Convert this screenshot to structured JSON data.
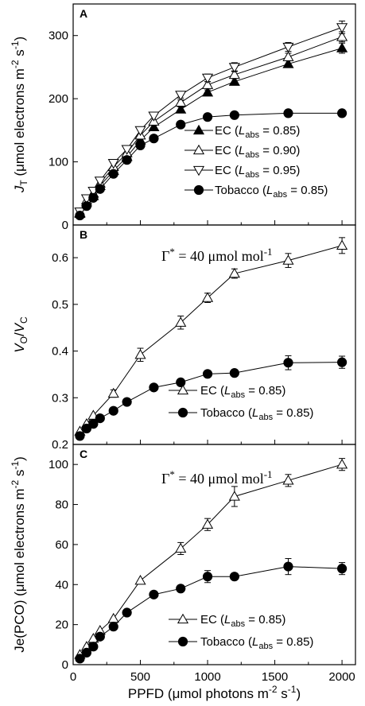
{
  "chart_data": [
    {
      "type": "line",
      "panel_label": "A",
      "ylabel": "J_T (μmol electrons m⁻² s⁻¹)",
      "ylabel_parts": {
        "base": "J",
        "sub": "T",
        "rest": " (μmol electrons m",
        "sup1": "-2",
        "mid": " s",
        "sup2": "-1",
        "end": ")"
      },
      "xlim": [
        0,
        2100
      ],
      "ylim": [
        0,
        350
      ],
      "yticks": [
        0,
        100,
        200,
        300
      ],
      "legend_position": "lower-right",
      "series": [
        {
          "name": "EC (Labs = 0.85)",
          "legend": {
            "pre": "EC (",
            "L": "L",
            "sub": "abs",
            "post": " = 0.85)"
          },
          "marker": "triangle-up-filled",
          "x": [
            50,
            100,
            150,
            200,
            300,
            400,
            500,
            600,
            800,
            1000,
            1200,
            1600,
            2000
          ],
          "y": [
            18,
            36,
            46,
            62,
            86,
            108,
            134,
            155,
            183,
            210,
            227,
            255,
            280
          ],
          "err": [
            0,
            0,
            0,
            0,
            0,
            0,
            0,
            0,
            4,
            4,
            5,
            5,
            8
          ]
        },
        {
          "name": "EC (Labs = 0.90)",
          "legend": {
            "pre": "EC (",
            "L": "L",
            "sub": "abs",
            "post": " = 0.90)"
          },
          "marker": "triangle-up-open",
          "x": [
            50,
            100,
            150,
            200,
            300,
            400,
            500,
            600,
            800,
            1000,
            1200,
            1600,
            2000
          ],
          "y": [
            19,
            39,
            50,
            66,
            92,
            114,
            142,
            164,
            194,
            222,
            238,
            266,
            298
          ],
          "err": [
            0,
            0,
            0,
            0,
            0,
            0,
            0,
            0,
            4,
            5,
            6,
            6,
            8
          ]
        },
        {
          "name": "EC (Labs = 0.95)",
          "legend": {
            "pre": "EC (",
            "L": "L",
            "sub": "abs",
            "post": " = 0.95)"
          },
          "marker": "triangle-down-open",
          "x": [
            50,
            100,
            150,
            200,
            300,
            400,
            500,
            600,
            800,
            1000,
            1200,
            1600,
            2000
          ],
          "y": [
            21,
            42,
            54,
            70,
            98,
            120,
            150,
            173,
            206,
            233,
            250,
            282,
            313
          ],
          "err": [
            0,
            0,
            0,
            0,
            0,
            0,
            0,
            0,
            5,
            6,
            7,
            7,
            10
          ]
        },
        {
          "name": "Tobacco (Labs = 0.85)",
          "legend": {
            "pre": "Tobacco (",
            "L": "L",
            "sub": "abs",
            "post": " = 0.85)"
          },
          "marker": "circle-filled",
          "x": [
            50,
            100,
            150,
            200,
            300,
            400,
            500,
            600,
            800,
            1000,
            1200,
            1600,
            2000
          ],
          "y": [
            15,
            30,
            43,
            57,
            81,
            103,
            126,
            137,
            159,
            171,
            174,
            177,
            177
          ],
          "err": [
            0,
            0,
            0,
            0,
            0,
            0,
            0,
            0,
            0,
            4,
            4,
            5,
            4
          ]
        }
      ]
    },
    {
      "type": "line",
      "panel_label": "B",
      "annotation": "Γ* = 40 μmol mol⁻¹",
      "annotation_parts": {
        "gamma": "Γ",
        "star": "*",
        "rest": " = 40 μmol mol",
        "sup": "-1"
      },
      "ylabel": "V_O/V_C",
      "ylabel_parts": {
        "v1": "V",
        "s1": "O",
        "slash": "/",
        "v2": "V",
        "s2": "C"
      },
      "xlim": [
        0,
        2100
      ],
      "ylim": [
        0.2,
        0.67
      ],
      "yticks": [
        0.2,
        0.3,
        0.4,
        0.5,
        0.6
      ],
      "ytick_labels": [
        "0.2",
        "0.3",
        "0.4",
        "0.5",
        "0.6"
      ],
      "legend_position": "lower-right",
      "series": [
        {
          "name": "EC (Labs = 0.85)",
          "legend": {
            "pre": "EC (",
            "L": "L",
            "sub": "abs",
            "post": " = 0.85)"
          },
          "marker": "triangle-up-open",
          "x": [
            50,
            100,
            150,
            300,
            500,
            800,
            1000,
            1200,
            1600,
            2000
          ],
          "y": [
            0.228,
            0.244,
            0.262,
            0.309,
            0.392,
            0.461,
            0.514,
            0.566,
            0.594,
            0.626
          ],
          "err": [
            0,
            0,
            0,
            0.008,
            0.014,
            0.014,
            0.01,
            0.01,
            0.015,
            0.017
          ]
        },
        {
          "name": "Tobacco (Labs = 0.85)",
          "legend": {
            "pre": "Tobacco (",
            "L": "L",
            "sub": "abs",
            "post": " = 0.85)"
          },
          "marker": "circle-filled",
          "x": [
            50,
            100,
            150,
            200,
            300,
            400,
            600,
            800,
            1000,
            1200,
            1600,
            2000
          ],
          "y": [
            0.218,
            0.234,
            0.244,
            0.256,
            0.272,
            0.291,
            0.322,
            0.333,
            0.351,
            0.353,
            0.375,
            0.376
          ],
          "err": [
            0,
            0,
            0,
            0,
            0,
            0,
            0,
            0,
            0.005,
            0.005,
            0.015,
            0.013
          ]
        }
      ]
    },
    {
      "type": "line",
      "panel_label": "C",
      "annotation": "Γ* = 40 μmol mol⁻¹",
      "annotation_parts": {
        "gamma": "Γ",
        "star": "*",
        "rest": " = 40 μmol mol",
        "sup": "-1"
      },
      "ylabel": "Je(PCO) (μmol electrons m⁻² s⁻¹)",
      "ylabel_parts": {
        "base": "Je(PCO) (μmol electrons m",
        "sup1": "-2",
        "mid": " s",
        "sup2": "-1",
        "end": ")"
      },
      "xlabel": "PPFD (μmol photons m⁻² s⁻¹)",
      "xlabel_parts": {
        "base": "PPFD (μmol photons m",
        "sup1": "-2",
        "mid": " s",
        "sup2": "-1",
        "end": ")"
      },
      "xlim": [
        0,
        2100
      ],
      "xticks": [
        0,
        500,
        1000,
        1500,
        2000
      ],
      "ylim": [
        0,
        110
      ],
      "yticks": [
        0,
        20,
        40,
        60,
        80,
        100
      ],
      "legend_position": "lower-right",
      "series": [
        {
          "name": "EC (Labs = 0.85)",
          "legend": {
            "pre": "EC (",
            "L": "L",
            "sub": "abs",
            "post": " = 0.85)"
          },
          "marker": "triangle-up-open",
          "x": [
            50,
            100,
            150,
            200,
            300,
            500,
            800,
            1000,
            1200,
            1600,
            2000
          ],
          "y": [
            5,
            9,
            13,
            17,
            23,
            42,
            58,
            70,
            84,
            92,
            100
          ],
          "err": [
            0,
            0,
            0,
            0,
            0,
            0,
            3,
            3,
            5,
            3,
            3
          ]
        },
        {
          "name": "Tobacco (Labs = 0.85)",
          "legend": {
            "pre": "Tobacco (",
            "L": "L",
            "sub": "abs",
            "post": " = 0.85)"
          },
          "marker": "circle-filled",
          "x": [
            50,
            100,
            150,
            200,
            300,
            400,
            600,
            800,
            1000,
            1200,
            1600,
            2000
          ],
          "y": [
            3,
            6,
            9,
            14,
            19,
            26,
            35,
            38,
            44,
            44,
            49,
            48
          ],
          "err": [
            0,
            0,
            0,
            0,
            0,
            0,
            0,
            0,
            3,
            0,
            4,
            3
          ]
        }
      ]
    }
  ]
}
